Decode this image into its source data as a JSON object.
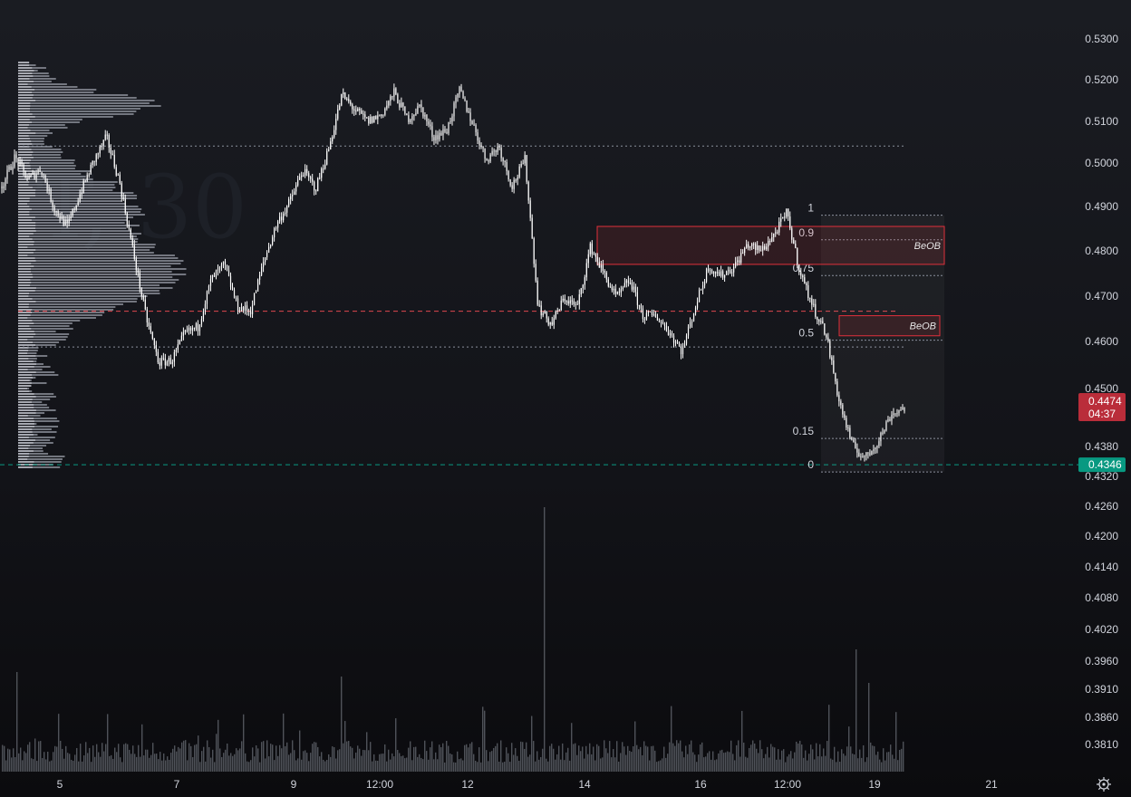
{
  "chart_data": {
    "type": "candlestick",
    "watermark": "T, 30",
    "y_axis": {
      "labels": [
        "0.5300",
        "0.5200",
        "0.5100",
        "0.5000",
        "0.4900",
        "0.4800",
        "0.4700",
        "0.4600",
        "0.4500",
        "0.4380",
        "0.4320",
        "0.4260",
        "0.4200",
        "0.4140",
        "0.4080",
        "0.4020",
        "0.3960",
        "0.3910",
        "0.3860",
        "0.3810"
      ]
    },
    "x_axis": {
      "labels": [
        "5",
        "7",
        "9",
        "12:00",
        "12",
        "14",
        "16",
        "12:00",
        "19",
        "21"
      ]
    },
    "price_path": [
      0.497,
      0.5035,
      0.4985,
      0.501,
      0.492,
      0.488,
      0.4955,
      0.5025,
      0.508,
      0.498,
      0.483,
      0.468,
      0.4575,
      0.458,
      0.464,
      0.4655,
      0.476,
      0.4795,
      0.47,
      0.469,
      0.48,
      0.4885,
      0.4935,
      0.5005,
      0.4965,
      0.5055,
      0.5175,
      0.514,
      0.5115,
      0.513,
      0.518,
      0.512,
      0.515,
      0.508,
      0.5095,
      0.5185,
      0.511,
      0.503,
      0.506,
      0.497,
      0.503,
      0.47,
      0.466,
      0.472,
      0.47,
      0.4835,
      0.4775,
      0.472,
      0.476,
      0.468,
      0.468,
      0.4645,
      0.46,
      0.47,
      0.479,
      0.477,
      0.479,
      0.484,
      0.4825,
      0.486,
      0.491,
      0.478,
      0.47,
      0.464,
      0.449,
      0.439,
      0.436,
      0.44,
      0.446,
      0.4474
    ],
    "current_price": {
      "label": "0.4474",
      "countdown": "04:37",
      "color": "#f23645"
    },
    "support_price": {
      "label": "0.4346",
      "color": "#089981"
    },
    "horizontal_lines": [
      {
        "price": 0.506,
        "style": "dotted",
        "color": "#8a8f9c"
      },
      {
        "price": 0.469,
        "style": "dashed",
        "color": "#e0474f"
      },
      {
        "price": 0.461,
        "style": "dotted",
        "color": "#8a8f9c"
      }
    ],
    "fib_levels": [
      {
        "label": "1",
        "price": 0.4905
      },
      {
        "label": "0.9",
        "price": 0.485
      },
      {
        "label": "0.75",
        "price": 0.477
      },
      {
        "label": "0.5",
        "price": 0.4625
      },
      {
        "label": "0.15",
        "price": 0.4405
      },
      {
        "label": "0",
        "price": 0.433
      }
    ],
    "order_blocks": [
      {
        "label": "BeOB",
        "top": 0.488,
        "bottom": 0.4795
      },
      {
        "label": "BeOB",
        "top": 0.468,
        "bottom": 0.4635
      }
    ],
    "volume_profile": true,
    "volume": true
  }
}
